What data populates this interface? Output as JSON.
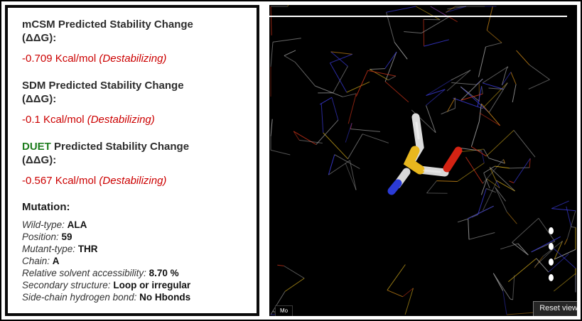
{
  "colors": {
    "destabilizing_red": "#cc0000",
    "duet_green": "#1e7d1e",
    "heading_dark": "#2d2d2d",
    "viewer_background": "#000000",
    "stick_white": "#dcdcdc",
    "stick_yellow": "#e8b71e",
    "stick_red": "#d42313",
    "stick_blue": "#2b3bd6"
  },
  "results": {
    "predictions": [
      {
        "tool": "mCSM",
        "title": "Predicted Stability Change",
        "title2": "(ΔΔG):",
        "value": "-0.709 Kcal/mol",
        "outcome": "(Destabilizing)"
      },
      {
        "tool": "SDM",
        "title": "Predicted Stability Change",
        "title2": "(ΔΔG):",
        "value": "-0.1 Kcal/mol",
        "outcome": "(Destabilizing)"
      },
      {
        "tool": "DUET",
        "title": "Predicted Stability Change",
        "title2": "(ΔΔG):",
        "value": "-0.567 Kcal/mol",
        "outcome": "(Destabilizing)"
      }
    ],
    "mutation": {
      "title": "Mutation:",
      "details": [
        {
          "label": "Wild-type:",
          "value": "ALA"
        },
        {
          "label": "Position:",
          "value": "59"
        },
        {
          "label": "Mutant-type:",
          "value": "THR"
        },
        {
          "label": "Chain:",
          "value": "A"
        },
        {
          "label": "Relative solvent accessibility:",
          "value": "8.70 %"
        },
        {
          "label": "Secondary structure:",
          "value": "Loop or irregular"
        },
        {
          "label": "Side-chain hydrogen bond:",
          "value": "No Hbonds"
        }
      ]
    }
  },
  "viewer": {
    "model_button": "Mo",
    "reset_button": "Reset view"
  }
}
